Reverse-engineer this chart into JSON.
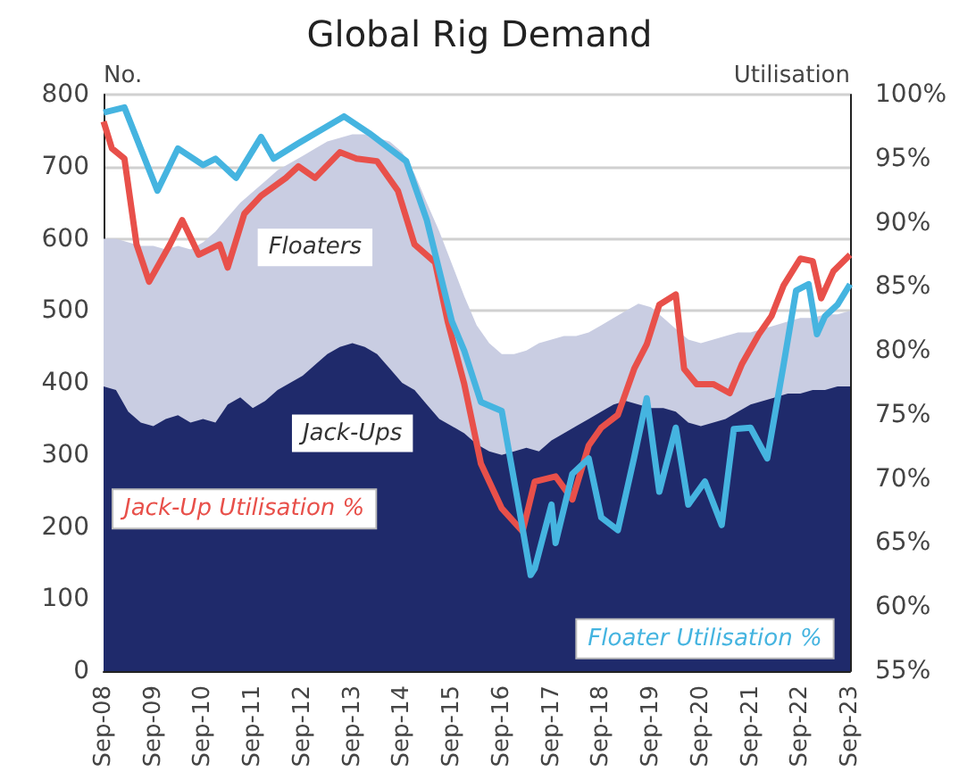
{
  "chart_data": {
    "type": "area",
    "title": "Global Rig Demand",
    "ylabel": "No.",
    "y2label": "Utilisation",
    "stacked": true,
    "marker": "none",
    "legend": false,
    "grid": "y",
    "xlim": [
      "2008-09",
      "2023-09"
    ],
    "xticks": [
      {
        "value": "2008-09",
        "label": "Sep-08"
      },
      {
        "value": "2009-09",
        "label": "Sep-09"
      },
      {
        "value": "2010-09",
        "label": "Sep-10"
      },
      {
        "value": "2011-09",
        "label": "Sep-11"
      },
      {
        "value": "2012-09",
        "label": "Sep-12"
      },
      {
        "value": "2013-09",
        "label": "Sep-13"
      },
      {
        "value": "2014-09",
        "label": "Sep-14"
      },
      {
        "value": "2015-09",
        "label": "Sep-15"
      },
      {
        "value": "2016-09",
        "label": "Sep-16"
      },
      {
        "value": "2017-09",
        "label": "Sep-17"
      },
      {
        "value": "2018-09",
        "label": "Sep-18"
      },
      {
        "value": "2019-09",
        "label": "Sep-19"
      },
      {
        "value": "2020-09",
        "label": "Sep-20"
      },
      {
        "value": "2021-09",
        "label": "Sep-21"
      },
      {
        "value": "2022-09",
        "label": "Sep-22"
      },
      {
        "value": "2023-09",
        "label": "Sep-23"
      }
    ],
    "ylim": [
      0,
      800
    ],
    "yticks": [
      0,
      100,
      200,
      300,
      400,
      500,
      600,
      700,
      800
    ],
    "y2lim": [
      55,
      100
    ],
    "y2ticks": [
      {
        "value": 55,
        "label": "55%"
      },
      {
        "value": 60,
        "label": "60%"
      },
      {
        "value": 65,
        "label": "65%"
      },
      {
        "value": 70,
        "label": "70%"
      },
      {
        "value": 75,
        "label": "75%"
      },
      {
        "value": 80,
        "label": "80%"
      },
      {
        "value": 85,
        "label": "85%"
      },
      {
        "value": 90,
        "label": "90%"
      },
      {
        "value": 95,
        "label": "95%"
      },
      {
        "value": 100,
        "label": "100%"
      }
    ],
    "x": [
      "2008-09",
      "2008-12",
      "2009-03",
      "2009-06",
      "2009-09",
      "2009-12",
      "2010-03",
      "2010-06",
      "2010-09",
      "2010-12",
      "2011-03",
      "2011-06",
      "2011-09",
      "2011-12",
      "2012-03",
      "2012-06",
      "2012-09",
      "2012-12",
      "2013-03",
      "2013-06",
      "2013-09",
      "2013-12",
      "2014-03",
      "2014-06",
      "2014-09",
      "2014-12",
      "2015-03",
      "2015-06",
      "2015-09",
      "2015-12",
      "2016-03",
      "2016-06",
      "2016-09",
      "2016-12",
      "2017-03",
      "2017-06",
      "2017-09",
      "2017-12",
      "2018-03",
      "2018-06",
      "2018-09",
      "2018-12",
      "2019-03",
      "2019-06",
      "2019-09",
      "2019-12",
      "2020-03",
      "2020-06",
      "2020-09",
      "2020-12",
      "2021-03",
      "2021-06",
      "2021-09",
      "2021-12",
      "2022-03",
      "2022-06",
      "2022-09",
      "2022-12",
      "2023-03",
      "2023-06",
      "2023-09"
    ],
    "series": [
      {
        "name": "Jack-Ups",
        "color": "#1f2a6b",
        "values": [
          395,
          390,
          360,
          345,
          340,
          350,
          355,
          345,
          350,
          345,
          370,
          380,
          365,
          375,
          390,
          400,
          410,
          425,
          440,
          450,
          455,
          450,
          440,
          420,
          400,
          390,
          370,
          350,
          340,
          330,
          315,
          305,
          300,
          305,
          310,
          305,
          320,
          330,
          340,
          350,
          360,
          370,
          375,
          370,
          365,
          365,
          360,
          345,
          340,
          345,
          350,
          360,
          370,
          375,
          380,
          385,
          385,
          390,
          390,
          395,
          395
        ]
      },
      {
        "name": "Floaters",
        "color": "#c9cde2",
        "values": [
          205,
          210,
          235,
          245,
          250,
          235,
          235,
          240,
          245,
          265,
          260,
          270,
          300,
          305,
          305,
          305,
          305,
          300,
          295,
          290,
          290,
          295,
          300,
          315,
          320,
          300,
          280,
          260,
          225,
          190,
          165,
          150,
          140,
          135,
          135,
          150,
          140,
          135,
          125,
          120,
          120,
          120,
          125,
          140,
          140,
          125,
          115,
          115,
          115,
          115,
          115,
          110,
          100,
          100,
          100,
          100,
          105,
          100,
          105,
          100,
          105
        ]
      },
      {
        "name": "Jack-Up Utilisation %",
        "type": "line",
        "axis": "y2",
        "color": "#e8504a",
        "x": [
          "2008-09",
          "2008-11",
          "2009-02",
          "2009-05",
          "2009-08",
          "2010-01",
          "2010-04",
          "2010-08",
          "2011-01",
          "2011-03",
          "2011-07",
          "2011-11",
          "2012-05",
          "2012-08",
          "2012-12",
          "2013-06",
          "2013-10",
          "2014-03",
          "2014-08",
          "2014-12",
          "2015-05",
          "2015-08",
          "2015-12",
          "2016-04",
          "2016-09",
          "2017-02",
          "2017-05",
          "2017-10",
          "2018-02",
          "2018-06",
          "2018-09",
          "2019-01",
          "2019-05",
          "2019-08",
          "2019-11",
          "2020-03",
          "2020-05",
          "2020-08",
          "2020-12",
          "2021-04",
          "2021-07",
          "2021-11",
          "2022-02",
          "2022-05",
          "2022-09",
          "2022-12",
          "2023-02",
          "2023-05",
          "2023-09"
        ],
        "values": [
          97.9,
          95.8,
          95,
          88.3,
          85.4,
          88.3,
          90.2,
          87.5,
          88.3,
          86.5,
          90.7,
          92.1,
          93.5,
          94.4,
          93.5,
          95.5,
          95,
          94.8,
          92.5,
          88.3,
          86.9,
          82.3,
          77.4,
          71.2,
          67.7,
          65.9,
          69.8,
          70.2,
          68.4,
          72.6,
          74,
          75,
          78.6,
          80.5,
          83.6,
          84.4,
          78.6,
          77.4,
          77.4,
          76.7,
          79,
          81.3,
          82.7,
          85.1,
          87.2,
          87,
          84.1,
          86.2,
          87.5
        ]
      },
      {
        "name": "Floater Utilisation %",
        "type": "line",
        "axis": "y2",
        "color": "#45b4e0",
        "x": [
          "2008-09",
          "2009-02",
          "2009-10",
          "2010-03",
          "2010-09",
          "2010-12",
          "2011-05",
          "2011-11",
          "2012-02",
          "2012-08",
          "2013-07",
          "2014-01",
          "2014-10",
          "2015-03",
          "2015-09",
          "2015-12",
          "2016-04",
          "2016-09",
          "2017-01",
          "2017-04",
          "2017-05",
          "2017-09",
          "2017-10",
          "2018-02",
          "2018-06",
          "2018-09",
          "2019-01",
          "2019-05",
          "2019-08",
          "2019-11",
          "2020-03",
          "2020-06",
          "2020-10",
          "2021-02",
          "2021-05",
          "2021-09",
          "2022-01",
          "2022-05",
          "2022-08",
          "2022-11",
          "2023-01",
          "2023-03",
          "2023-06",
          "2023-09"
        ],
        "values": [
          98.6,
          99,
          92.5,
          95.8,
          94.5,
          95,
          93.5,
          96.7,
          95,
          96.2,
          98.3,
          97,
          94.8,
          90.2,
          82.3,
          80,
          76,
          75.3,
          68,
          62.5,
          63,
          68,
          65,
          70.4,
          71.6,
          67,
          66,
          71.7,
          76.3,
          69,
          74,
          68,
          69.8,
          66.4,
          73.9,
          74,
          71.6,
          78.9,
          84.7,
          85.2,
          81.3,
          82.7,
          83.6,
          85.2
        ]
      }
    ]
  }
}
